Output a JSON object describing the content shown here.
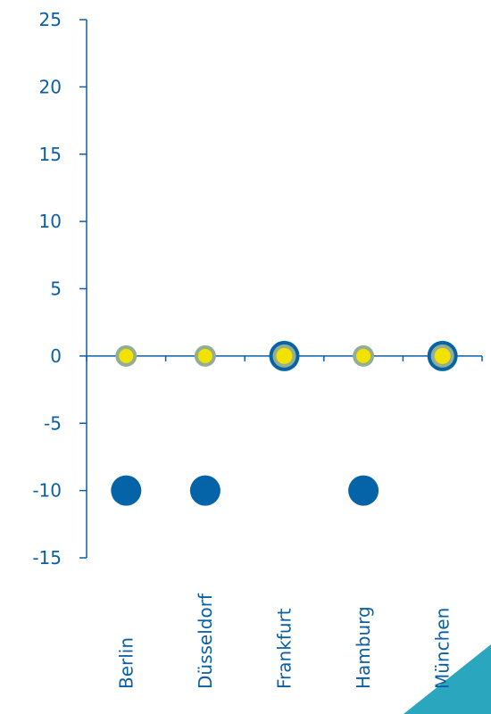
{
  "colors": {
    "axis": "#0b5fa5",
    "text": "#0b5fa5",
    "dark_marker": "#0563a8",
    "ring_gray": "#93ae92",
    "dot_yellow": "#f2e200",
    "accent_teal": "#2aa6be"
  },
  "chart_data": {
    "type": "scatter",
    "categories": [
      "Berlin",
      "Düsseldorf",
      "Frankfurt",
      "Hamburg",
      "München"
    ],
    "ylim": [
      -15,
      25
    ],
    "yticks": [
      25,
      20,
      15,
      10,
      5,
      0,
      -5,
      -10,
      -15
    ],
    "ytick_labels": [
      "25",
      "20",
      "15",
      "10",
      "5",
      "0",
      "-5",
      "-10",
      "-15"
    ],
    "grid": false,
    "series": [
      {
        "values": [
          -10,
          -10,
          null,
          -10,
          null
        ],
        "marker": "dark-filled-circle"
      },
      {
        "values": [
          0,
          0,
          null,
          0,
          null
        ],
        "marker": "yellow-dot-gray-ring"
      },
      {
        "values": [
          null,
          null,
          0,
          null,
          0
        ],
        "marker": "yellow-dot-blue-ring"
      }
    ]
  }
}
